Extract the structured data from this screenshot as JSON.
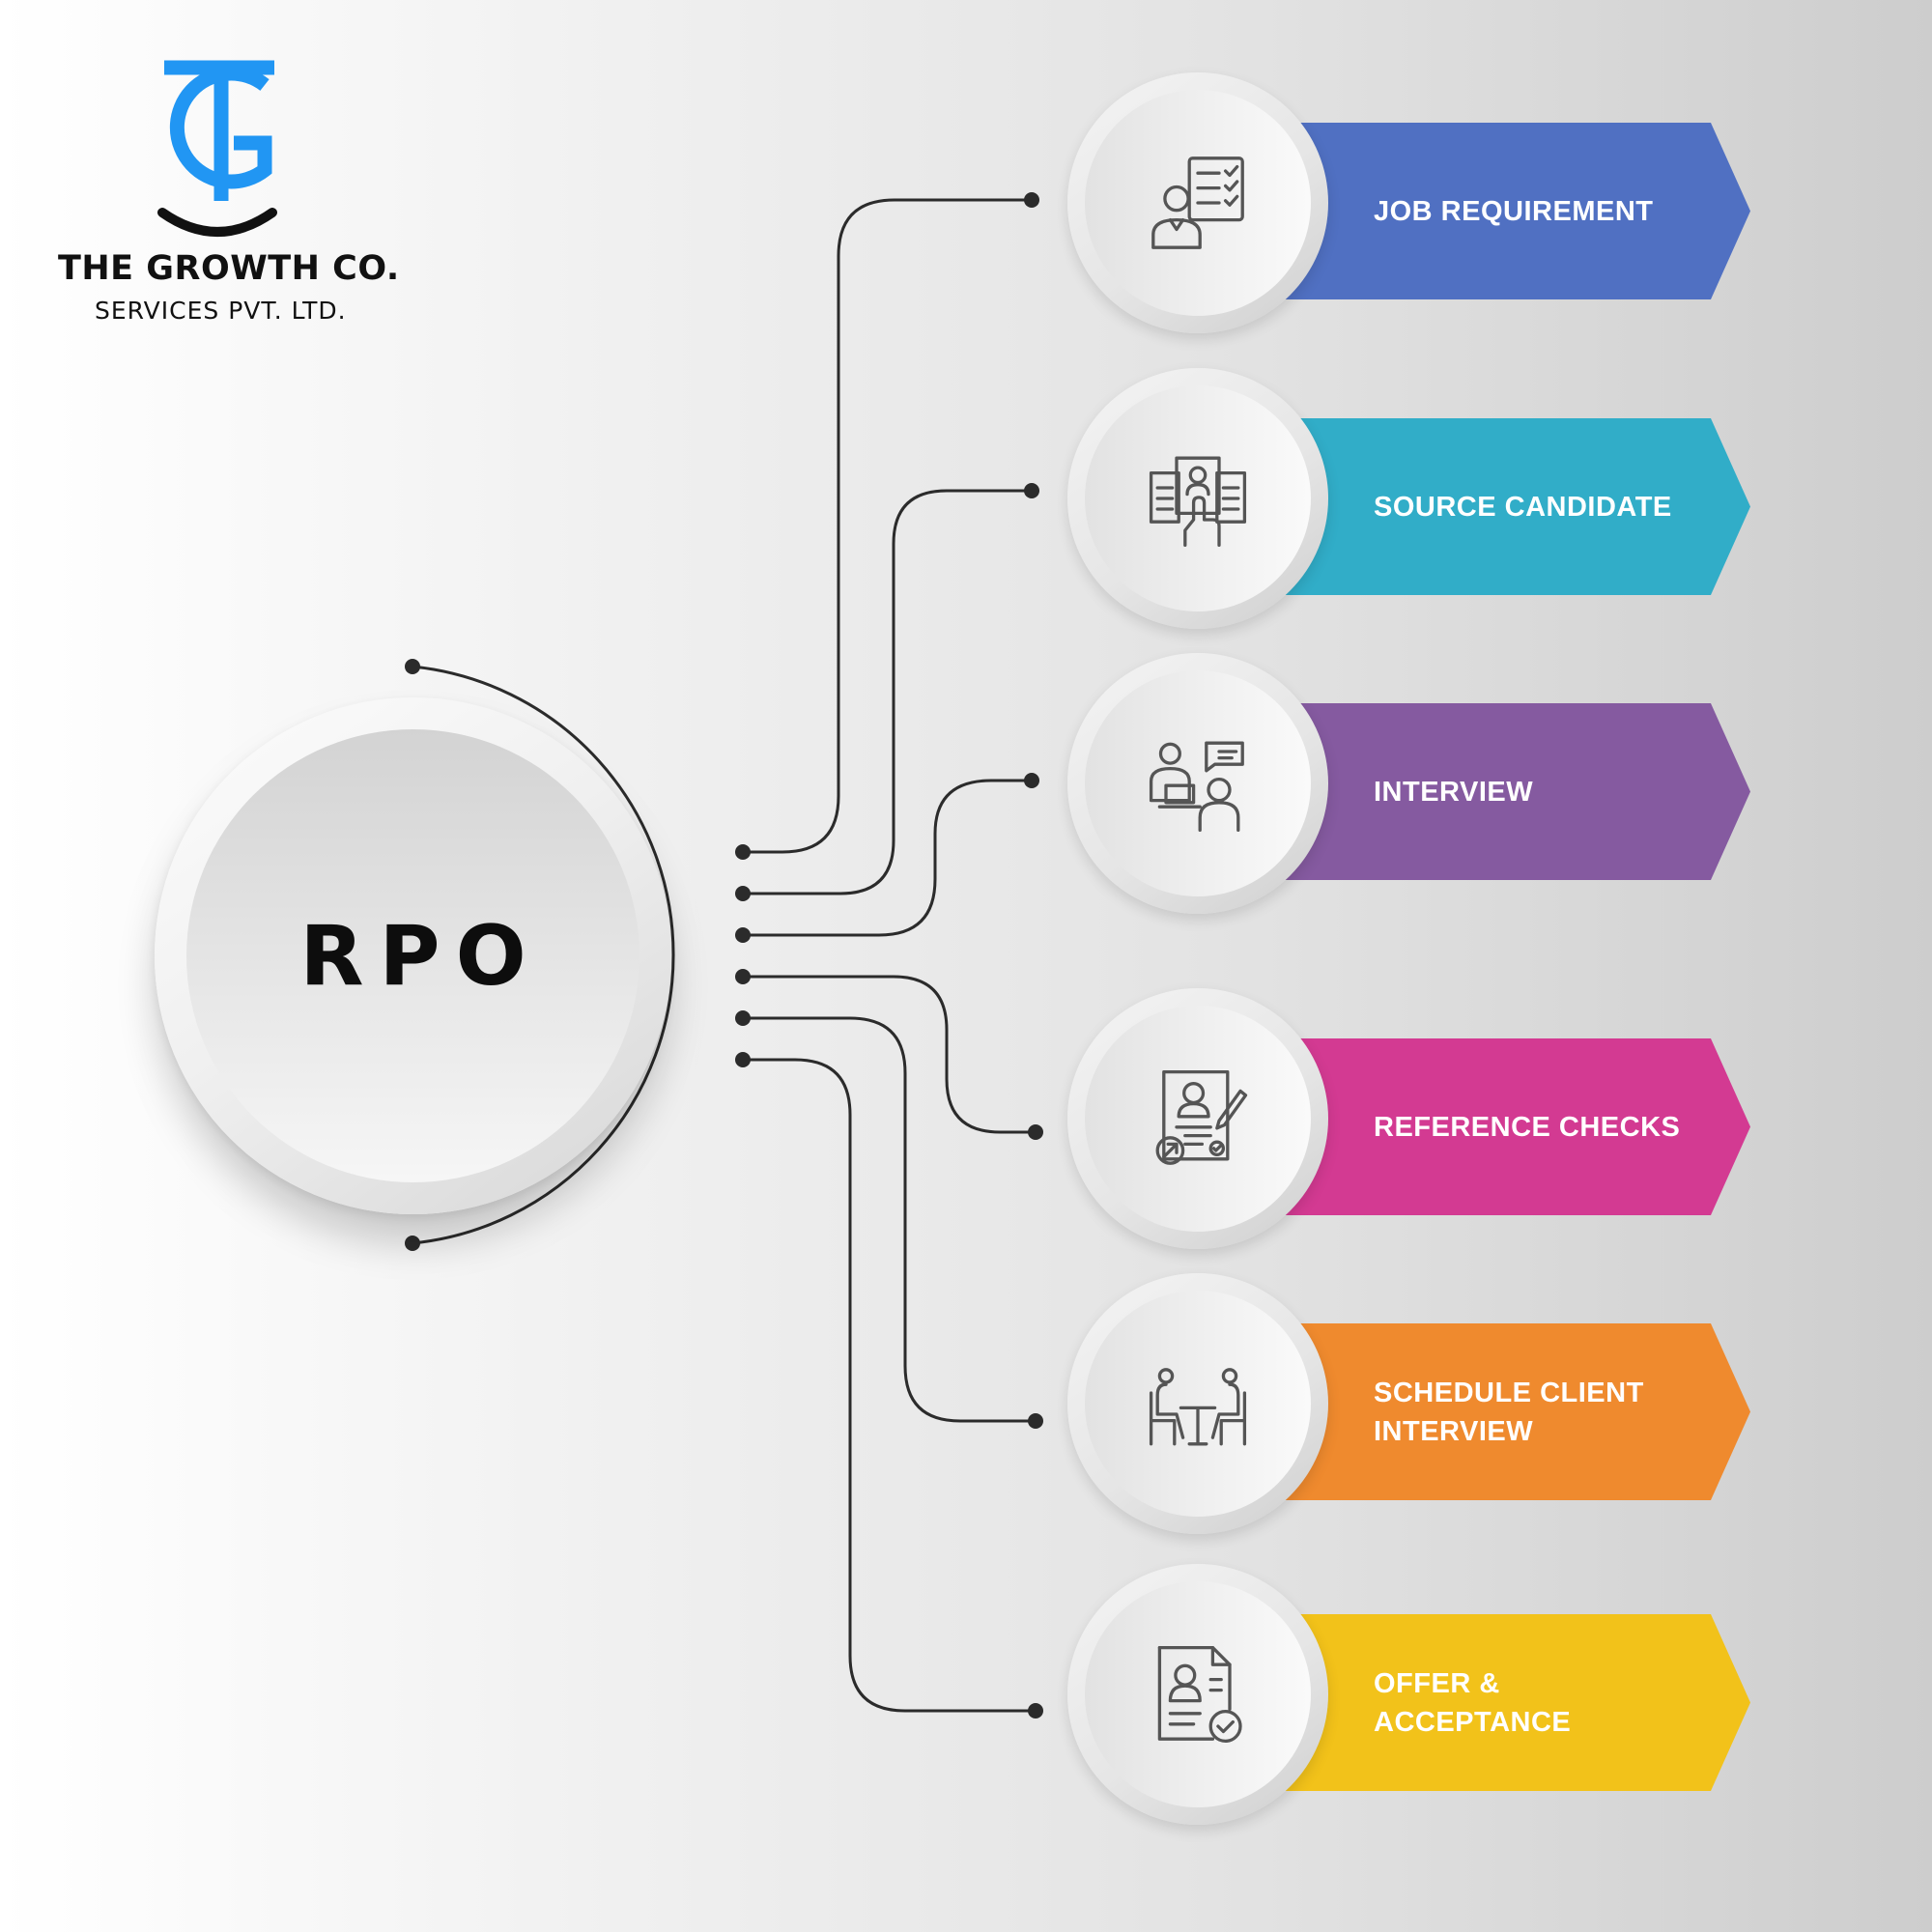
{
  "brand": {
    "name": "THE GROWTH CO.",
    "subtitle": "SERVICES PVT. LTD.",
    "logo_colors": {
      "primary": "#2196f3",
      "secondary": "#111111"
    }
  },
  "hub": {
    "label": "RPO"
  },
  "steps": [
    {
      "label": "JOB REQUIREMENT",
      "color": "#5070c2",
      "icon": "job-checklist-icon"
    },
    {
      "label": "SOURCE CANDIDATE",
      "color": "#31adc8",
      "icon": "candidate-profiles-icon"
    },
    {
      "label": "INTERVIEW",
      "color": "#855aa0",
      "icon": "interview-chat-icon"
    },
    {
      "label": "REFERENCE CHECKS",
      "color": "#d33a92",
      "icon": "resume-review-icon"
    },
    {
      "label": "SCHEDULE CLIENT INTERVIEW",
      "color": "#ef8a2e",
      "icon": "meeting-table-icon"
    },
    {
      "label": "OFFER & ACCEPTANCE",
      "color": "#f2c21a",
      "icon": "approved-document-icon"
    }
  ]
}
